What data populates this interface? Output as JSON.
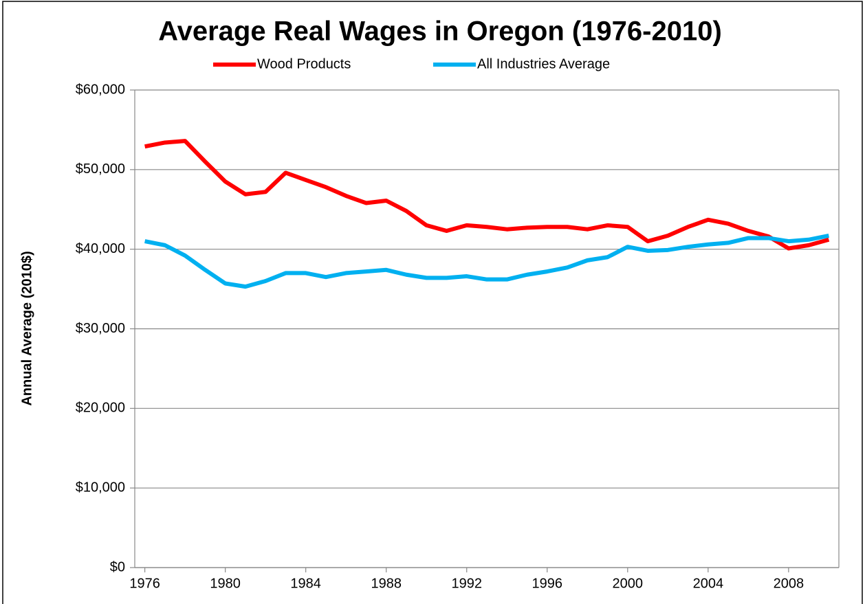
{
  "chart_data": {
    "type": "line",
    "title": "Average Real Wages in Oregon (1976-2010)",
    "y_label": "Annual Average (2010$)",
    "x": [
      1976,
      1977,
      1978,
      1979,
      1980,
      1981,
      1982,
      1983,
      1984,
      1985,
      1986,
      1987,
      1988,
      1989,
      1990,
      1991,
      1992,
      1993,
      1994,
      1995,
      1996,
      1997,
      1998,
      1999,
      2000,
      2001,
      2002,
      2003,
      2004,
      2005,
      2006,
      2007,
      2008,
      2009,
      2010
    ],
    "series": [
      {
        "name": "Wood Products",
        "color": "#ff0000",
        "values": [
          52900,
          53400,
          53600,
          51000,
          48500,
          46900,
          47200,
          49600,
          48700,
          47800,
          46700,
          45800,
          46100,
          44800,
          43000,
          42300,
          43000,
          42800,
          42500,
          42700,
          42800,
          42800,
          42500,
          43000,
          42800,
          41000,
          41700,
          42800,
          43700,
          43200,
          42300,
          41600,
          40100,
          40500,
          41200
        ]
      },
      {
        "name": "All Industries Average",
        "color": "#00b0f0",
        "values": [
          41000,
          40500,
          39200,
          37400,
          35700,
          35300,
          36000,
          37000,
          37000,
          36500,
          37000,
          37200,
          37400,
          36800,
          36400,
          36400,
          36600,
          36200,
          36200,
          36800,
          37200,
          37700,
          38600,
          39000,
          40300,
          39800,
          39900,
          40300,
          40600,
          40800,
          41400,
          41400,
          41000,
          41200,
          41700
        ]
      }
    ],
    "xlim": [
      1975.5,
      2010.5
    ],
    "xticks": [
      1976,
      1980,
      1984,
      1988,
      1992,
      1996,
      2000,
      2004,
      2008
    ],
    "ylim": [
      0,
      60000
    ],
    "yticks": [
      {
        "value": 0,
        "label": "$0"
      },
      {
        "value": 10000,
        "label": "$10,000"
      },
      {
        "value": 20000,
        "label": "$20,000"
      },
      {
        "value": 30000,
        "label": "$30,000"
      },
      {
        "value": 40000,
        "label": "$40,000"
      },
      {
        "value": 50000,
        "label": "$50,000"
      },
      {
        "value": 60000,
        "label": "$60,000"
      }
    ],
    "grid": true,
    "legend": "top"
  }
}
